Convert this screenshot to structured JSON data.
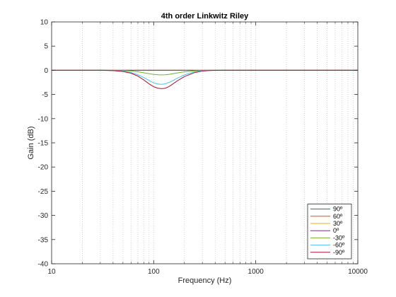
{
  "chart_data": {
    "type": "line",
    "title": "4th order Linkwitz Riley",
    "xlabel": "Frequency (Hz)",
    "ylabel": "Gain (dB)",
    "xscale": "log",
    "xlim": [
      10,
      10000
    ],
    "ylim": [
      -40,
      10
    ],
    "x_ticks": [
      10,
      100,
      1000,
      10000
    ],
    "x_tick_labels": [
      "10",
      "100",
      "1000",
      "10000"
    ],
    "y_ticks": [
      10,
      5,
      0,
      -5,
      -10,
      -15,
      -20,
      -25,
      -30,
      -35,
      -40
    ],
    "y_tick_labels": [
      "10",
      "5",
      "0",
      "-5",
      "-10",
      "-15",
      "-20",
      "-25",
      "-30",
      "-35",
      "-40"
    ],
    "grid": "x-major-and-minor-dotted",
    "legend_position": "bottom-right",
    "x": [
      10,
      20,
      30,
      40,
      50,
      60,
      70,
      80,
      90,
      100,
      110,
      120,
      130,
      140,
      150,
      170,
      200,
      250,
      300,
      350,
      400,
      500,
      700,
      1000,
      2000,
      5000,
      10000
    ],
    "series": [
      {
        "name": "90º",
        "color": "#0072bd",
        "values": [
          0,
          0,
          0,
          0,
          0,
          0,
          0,
          0,
          0,
          0,
          0,
          0,
          0,
          0,
          0,
          0,
          0,
          0,
          0,
          0,
          0,
          0,
          0,
          0,
          0,
          0,
          0
        ]
      },
      {
        "name": "60º",
        "color": "#d95319",
        "values": [
          0,
          0,
          0,
          0,
          0,
          0,
          0,
          0,
          0,
          0,
          0,
          0,
          0,
          0,
          0,
          0,
          0,
          0,
          0,
          0,
          0,
          0,
          0,
          0,
          0,
          0,
          0
        ]
      },
      {
        "name": "30º",
        "color": "#edb120",
        "values": [
          0,
          0,
          0,
          0,
          0,
          0,
          0,
          0,
          0,
          0,
          0,
          0,
          0,
          0,
          0,
          0,
          0,
          0,
          0,
          0,
          0,
          0,
          0,
          0,
          0,
          0,
          0
        ]
      },
      {
        "name": "0º",
        "color": "#7e2f8e",
        "values": [
          0,
          0,
          0,
          0,
          0,
          0,
          0,
          0,
          0,
          0,
          0,
          0,
          0,
          0,
          0,
          0,
          0,
          0,
          0,
          0,
          0,
          0,
          0,
          0,
          0,
          0,
          0
        ]
      },
      {
        "name": "-30º",
        "color": "#77ac30",
        "values": [
          0,
          0,
          0,
          -0.02,
          -0.06,
          -0.15,
          -0.3,
          -0.5,
          -0.7,
          -0.85,
          -0.93,
          -0.95,
          -0.92,
          -0.85,
          -0.75,
          -0.55,
          -0.32,
          -0.12,
          -0.04,
          -0.01,
          0,
          0,
          0,
          0,
          0,
          0,
          0
        ]
      },
      {
        "name": "-60º",
        "color": "#4dbeee",
        "values": [
          0,
          0,
          0,
          -0.05,
          -0.18,
          -0.45,
          -0.9,
          -1.5,
          -2.1,
          -2.6,
          -2.85,
          -2.9,
          -2.8,
          -2.55,
          -2.25,
          -1.65,
          -0.95,
          -0.35,
          -0.12,
          -0.03,
          -0.01,
          0,
          0,
          0,
          0,
          0,
          0
        ]
      },
      {
        "name": "-90º",
        "color": "#a2142f",
        "values": [
          0,
          0,
          0,
          -0.07,
          -0.25,
          -0.6,
          -1.2,
          -2.0,
          -2.8,
          -3.4,
          -3.7,
          -3.8,
          -3.7,
          -3.4,
          -3.0,
          -2.2,
          -1.3,
          -0.5,
          -0.17,
          -0.05,
          -0.01,
          0,
          0,
          0,
          0,
          0,
          0
        ]
      }
    ]
  }
}
